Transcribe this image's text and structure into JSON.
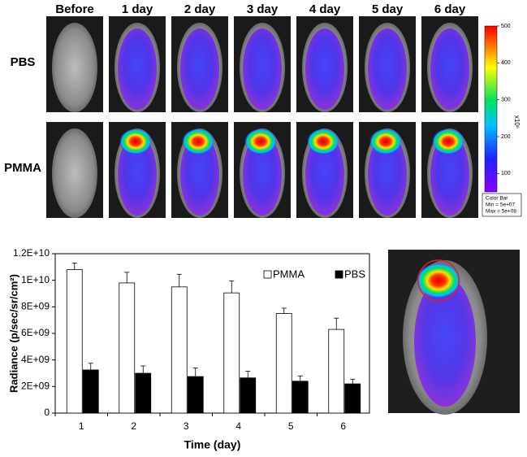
{
  "image_panel": {
    "columns": [
      "Before",
      "1 day",
      "2 day",
      "3 day",
      "4 day",
      "5 day",
      "6 day"
    ],
    "rows": [
      "PBS",
      "PMMA"
    ],
    "colorbar": {
      "lim": [
        50,
        500
      ],
      "ticks": [
        100,
        200,
        300,
        400,
        500
      ],
      "unit_label": "x10⁶",
      "note": [
        "Color Bar",
        "Min = 5e+07",
        "Max = 5e+08"
      ]
    }
  },
  "chart_data": {
    "type": "bar",
    "x_label": "Time (day)",
    "y_label": "Radiance (p/sec/sr/cm²)",
    "categories": [
      "1",
      "2",
      "3",
      "4",
      "5",
      "6"
    ],
    "series": [
      {
        "name": "PMMA",
        "color": "#ffffff",
        "values": [
          10800000000,
          9800000000,
          9500000000,
          9050000000,
          7500000000,
          6300000000
        ],
        "errors": [
          500000000,
          800000000,
          950000000,
          900000000,
          400000000,
          850000000
        ]
      },
      {
        "name": "PBS",
        "color": "#000000",
        "values": [
          3250000000,
          3000000000,
          2750000000,
          2650000000,
          2400000000,
          2200000000
        ],
        "errors": [
          500000000,
          550000000,
          650000000,
          500000000,
          400000000,
          350000000
        ]
      }
    ],
    "ylim": [
      0,
      12000000000
    ],
    "yticks": [
      0,
      {
        "value": 2000000000,
        "label": "2E+09"
      },
      {
        "value": 4000000000,
        "label": "4E+09"
      },
      {
        "value": 6000000000,
        "label": "6E+09"
      },
      {
        "value": 8000000000,
        "label": "8E+09"
      },
      {
        "value": 10000000000,
        "label": "1E+10"
      },
      {
        "value": 12000000000,
        "label": "1.2E+10"
      }
    ],
    "legend": "top-right"
  }
}
